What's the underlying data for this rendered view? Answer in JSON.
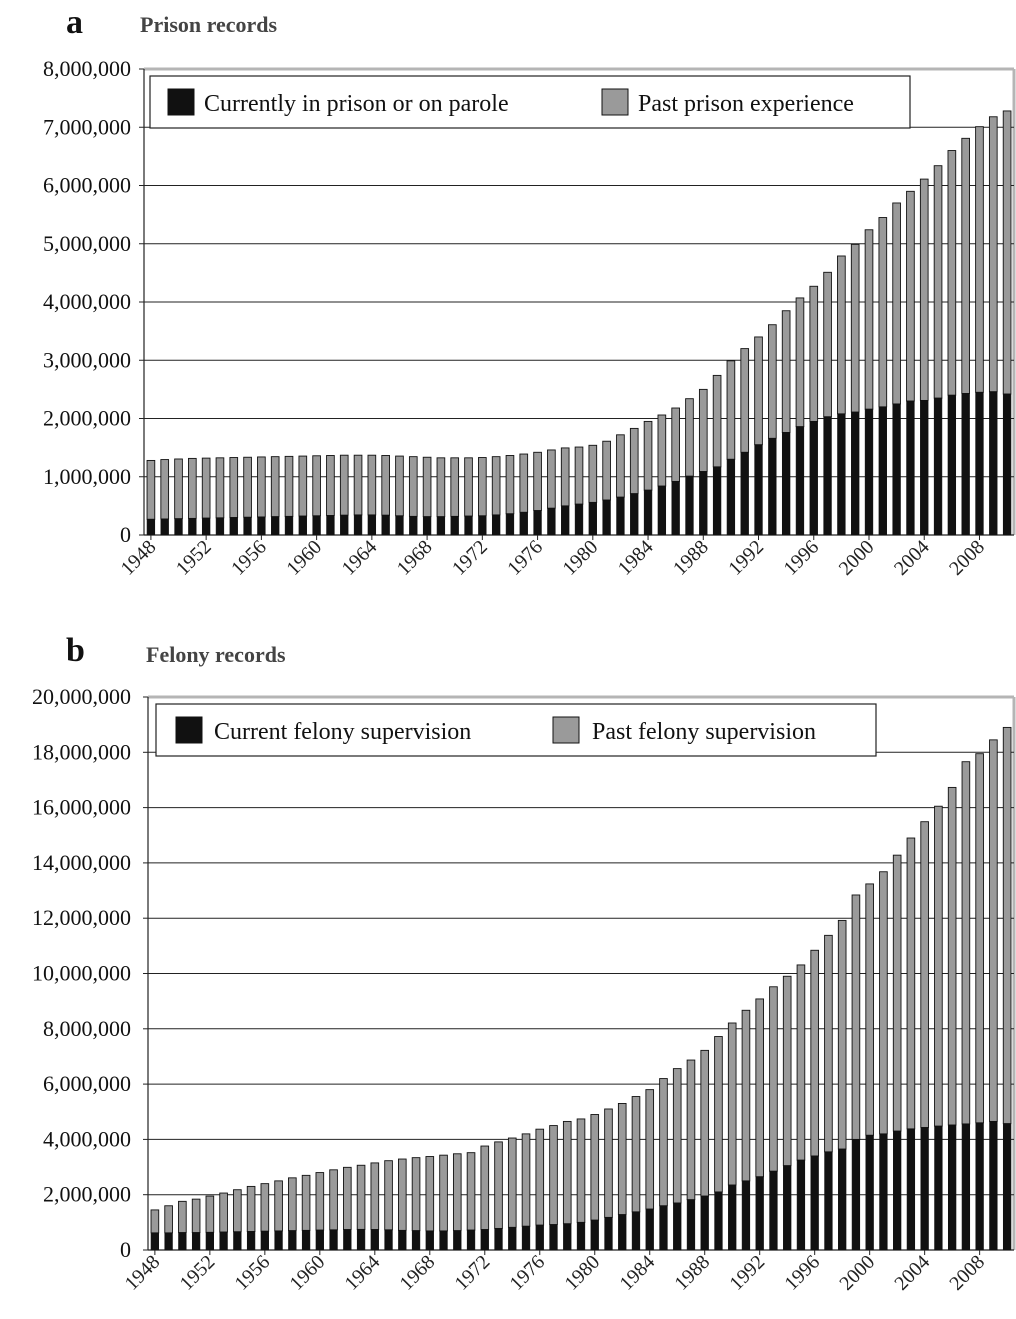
{
  "chart_data": [
    {
      "type": "bar",
      "stacked": true,
      "panel_letter": "a",
      "title": "Prison records",
      "ylim": [
        0,
        8000000
      ],
      "yticks": [
        0,
        1000000,
        2000000,
        3000000,
        4000000,
        5000000,
        6000000,
        7000000,
        8000000
      ],
      "ytick_labels": [
        "0",
        "1,000,000",
        "2,000,000",
        "3,000,000",
        "4,000,000",
        "5,000,000",
        "6,000,000",
        "7,000,000",
        "8,000,000"
      ],
      "xtick_labels": [
        "1948",
        "1952",
        "1956",
        "1960",
        "1964",
        "1968",
        "1972",
        "1976",
        "1980",
        "1984",
        "1988",
        "1992",
        "1996",
        "2000",
        "2004",
        "2008"
      ],
      "grid": "horizontal",
      "legend_position": "top-left",
      "categories": [
        1948,
        1949,
        1950,
        1951,
        1952,
        1953,
        1954,
        1955,
        1956,
        1957,
        1958,
        1959,
        1960,
        1961,
        1962,
        1963,
        1964,
        1965,
        1966,
        1967,
        1968,
        1969,
        1970,
        1971,
        1972,
        1973,
        1974,
        1975,
        1976,
        1977,
        1978,
        1979,
        1980,
        1981,
        1982,
        1983,
        1984,
        1985,
        1986,
        1987,
        1988,
        1989,
        1990,
        1991,
        1992,
        1993,
        1994,
        1995,
        1996,
        1997,
        1998,
        1999,
        2000,
        2001,
        2002,
        2003,
        2004,
        2005,
        2006,
        2007,
        2008,
        2009,
        2010
      ],
      "series": [
        {
          "name": "Currently in prison or on parole",
          "color": "#111111",
          "values": [
            270000,
            275000,
            280000,
            285000,
            290000,
            295000,
            300000,
            305000,
            310000,
            315000,
            320000,
            325000,
            330000,
            335000,
            340000,
            345000,
            345000,
            340000,
            330000,
            320000,
            315000,
            315000,
            320000,
            325000,
            330000,
            345000,
            365000,
            390000,
            420000,
            460000,
            500000,
            530000,
            560000,
            600000,
            650000,
            710000,
            770000,
            840000,
            920000,
            1010000,
            1090000,
            1170000,
            1300000,
            1420000,
            1550000,
            1660000,
            1760000,
            1860000,
            1950000,
            2030000,
            2080000,
            2110000,
            2160000,
            2200000,
            2250000,
            2300000,
            2310000,
            2350000,
            2400000,
            2430000,
            2450000,
            2460000,
            2420000
          ]
        },
        {
          "name": "Past prison experience",
          "color": "#9a9a9a",
          "values": [
            1010000,
            1020000,
            1025000,
            1030000,
            1030000,
            1030000,
            1030000,
            1030000,
            1030000,
            1030000,
            1030000,
            1030000,
            1030000,
            1030000,
            1030000,
            1025000,
            1025000,
            1025000,
            1025000,
            1025000,
            1020000,
            1010000,
            1005000,
            1000000,
            1000000,
            1000000,
            1000000,
            1000000,
            1000000,
            1000000,
            995000,
            980000,
            980000,
            1010000,
            1070000,
            1120000,
            1180000,
            1220000,
            1260000,
            1330000,
            1410000,
            1570000,
            1690000,
            1780000,
            1850000,
            1950000,
            2090000,
            2210000,
            2320000,
            2480000,
            2710000,
            2880000,
            3080000,
            3250000,
            3450000,
            3600000,
            3800000,
            3990000,
            4200000,
            4380000,
            4560000,
            4720000,
            4860000
          ]
        }
      ]
    },
    {
      "type": "bar",
      "stacked": true,
      "panel_letter": "b",
      "title": "Felony records",
      "ylim": [
        0,
        20000000
      ],
      "yticks": [
        0,
        2000000,
        4000000,
        6000000,
        8000000,
        10000000,
        12000000,
        14000000,
        16000000,
        18000000,
        20000000
      ],
      "ytick_labels": [
        "0",
        "2,000,000",
        "4,000,000",
        "6,000,000",
        "8,000,000",
        "10,000,000",
        "12,000,000",
        "14,000,000",
        "16,000,000",
        "18,000,000",
        "20,000,000"
      ],
      "xtick_labels": [
        "1948",
        "1952",
        "1956",
        "1960",
        "1964",
        "1968",
        "1972",
        "1976",
        "1980",
        "1984",
        "1988",
        "1992",
        "1996",
        "2000",
        "2004",
        "2008"
      ],
      "grid": "horizontal",
      "legend_position": "top-left",
      "categories": [
        1948,
        1949,
        1950,
        1951,
        1952,
        1953,
        1954,
        1955,
        1956,
        1957,
        1958,
        1959,
        1960,
        1961,
        1962,
        1963,
        1964,
        1965,
        1966,
        1967,
        1968,
        1969,
        1970,
        1971,
        1972,
        1973,
        1974,
        1975,
        1976,
        1977,
        1978,
        1979,
        1980,
        1981,
        1982,
        1983,
        1984,
        1985,
        1986,
        1987,
        1988,
        1989,
        1990,
        1991,
        1992,
        1993,
        1994,
        1995,
        1996,
        1997,
        1998,
        1999,
        2000,
        2001,
        2002,
        2003,
        2004,
        2005,
        2006,
        2007,
        2008,
        2009,
        2010
      ],
      "series": [
        {
          "name": "Current felony supervision",
          "color": "#111111",
          "values": [
            620000,
            620000,
            630000,
            630000,
            640000,
            650000,
            660000,
            670000,
            680000,
            690000,
            700000,
            710000,
            720000,
            730000,
            740000,
            745000,
            740000,
            730000,
            710000,
            700000,
            690000,
            690000,
            700000,
            720000,
            740000,
            780000,
            820000,
            860000,
            900000,
            920000,
            950000,
            1000000,
            1080000,
            1180000,
            1280000,
            1380000,
            1480000,
            1600000,
            1700000,
            1820000,
            1950000,
            2100000,
            2350000,
            2500000,
            2650000,
            2850000,
            3050000,
            3250000,
            3400000,
            3550000,
            3650000,
            4000000,
            4150000,
            4200000,
            4300000,
            4380000,
            4430000,
            4480000,
            4520000,
            4560000,
            4600000,
            4650000,
            4570000
          ]
        },
        {
          "name": "Past felony supervision",
          "color": "#9a9a9a",
          "values": [
            830000,
            980000,
            1130000,
            1210000,
            1310000,
            1410000,
            1520000,
            1630000,
            1720000,
            1810000,
            1910000,
            1990000,
            2080000,
            2170000,
            2250000,
            2320000,
            2410000,
            2500000,
            2580000,
            2640000,
            2690000,
            2740000,
            2780000,
            2800000,
            3020000,
            3130000,
            3230000,
            3340000,
            3470000,
            3580000,
            3700000,
            3740000,
            3820000,
            3920000,
            4020000,
            4170000,
            4320000,
            4600000,
            4860000,
            5050000,
            5270000,
            5620000,
            5860000,
            6170000,
            6430000,
            6670000,
            6850000,
            7060000,
            7440000,
            7830000,
            8270000,
            8840000,
            9090000,
            9480000,
            9980000,
            10520000,
            11060000,
            11570000,
            12210000,
            13100000,
            13350000,
            13800000,
            14330000
          ]
        }
      ]
    }
  ]
}
